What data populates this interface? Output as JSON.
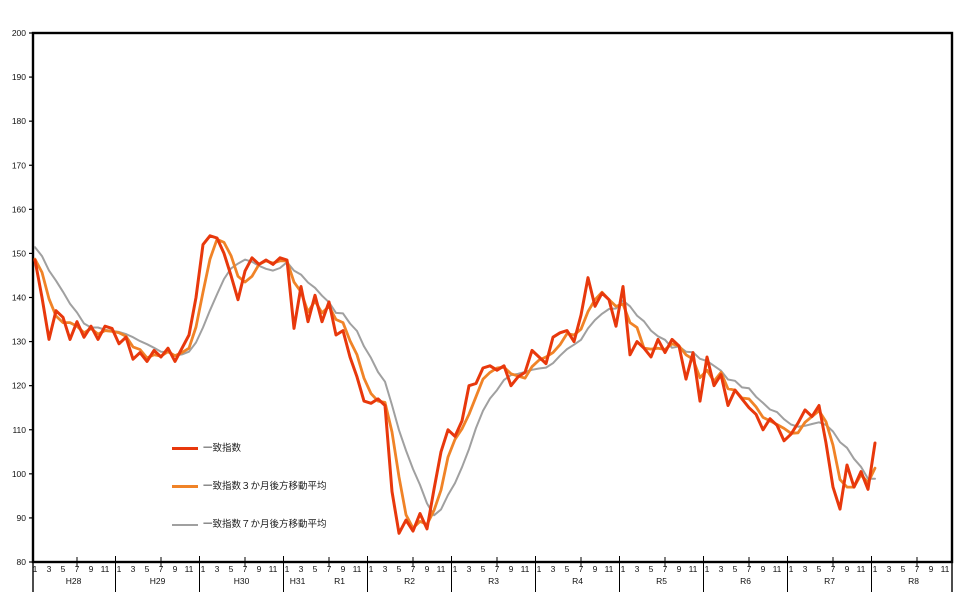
{
  "page": {
    "background": "#ffffff",
    "plot_border_color": "#000000"
  },
  "chart_data": {
    "type": "line",
    "title": "",
    "grid": "off",
    "legend_position": "inside-lower-left",
    "y_axis": {
      "min": 80,
      "max": 200,
      "step": 10,
      "tick_labels": [
        "80",
        "90",
        "100",
        "110",
        "120",
        "130",
        "140",
        "150",
        "160",
        "170",
        "180",
        "190",
        "200"
      ]
    },
    "x_axis": {
      "unit": "month",
      "month_tick_labels": [
        "1",
        "3",
        "5",
        "7",
        "9",
        "11"
      ],
      "year_groups": [
        {
          "label": "H28",
          "months": 12,
          "new_calendar_year": true
        },
        {
          "label": "H29",
          "months": 12,
          "new_calendar_year": true
        },
        {
          "label": "H30",
          "months": 12,
          "new_calendar_year": true
        },
        {
          "label": "H31",
          "months": 4,
          "new_calendar_year": true
        },
        {
          "label": "R1",
          "months": 8,
          "new_calendar_year": false
        },
        {
          "label": "R2",
          "months": 12,
          "new_calendar_year": true
        },
        {
          "label": "R3",
          "months": 12,
          "new_calendar_year": true
        },
        {
          "label": "R4",
          "months": 12,
          "new_calendar_year": true
        },
        {
          "label": "R5",
          "months": 12,
          "new_calendar_year": true
        },
        {
          "label": "R6",
          "months": 12,
          "new_calendar_year": true
        },
        {
          "label": "R7",
          "months": 12,
          "new_calendar_year": true
        },
        {
          "label": "R8",
          "months": 12,
          "new_calendar_year": true
        }
      ]
    },
    "series": [
      {
        "key": "coincident-index",
        "name": "一致指数",
        "color": "#e8380c",
        "line_width": 3,
        "start": "H28-01",
        "values": [
          148.5,
          140,
          130.5,
          137,
          135.5,
          130.5,
          134.5,
          131,
          133.5,
          130.5,
          133.5,
          133,
          129.5,
          131,
          126,
          127.5,
          125.5,
          128,
          126.5,
          128.5,
          125.5,
          128.5,
          131.5,
          140,
          152,
          154,
          153.5,
          150,
          145,
          139.5,
          146,
          149,
          147.5,
          148.5,
          147.5,
          149,
          148.5,
          133,
          142.5,
          134.5,
          140.5,
          134.5,
          139,
          131.5,
          132.5,
          126.5,
          122,
          116.5,
          116,
          117,
          115.5,
          96,
          86.5,
          89.5,
          87,
          91,
          87.5,
          96.5,
          105,
          110,
          108.5,
          112,
          120,
          120.5,
          124,
          124.5,
          123.5,
          124.5,
          120,
          122,
          123,
          128,
          126.5,
          125,
          131,
          132,
          132.5,
          130,
          136,
          144.5,
          138,
          141,
          139.5,
          133.5,
          142.5,
          127,
          130,
          128.5,
          126.5,
          130.5,
          127.5,
          130.5,
          129,
          121.5,
          127.5,
          116.5,
          126.5,
          120,
          122.5,
          115.5,
          119,
          117,
          115,
          113.5,
          110,
          112.5,
          111,
          107.5,
          109,
          111.5,
          114.5,
          113,
          115.5,
          107,
          97,
          92,
          102,
          97,
          100.5,
          96.5,
          107
        ]
      },
      {
        "key": "coincident-index-3month-backward-moving-average",
        "name": "一致指数３か月後方移動平均",
        "color": "#f08327",
        "line_width": 2.8,
        "start": "H28-01",
        "values": [
          148.7,
          145.7,
          139.7,
          135.8,
          134.3,
          134.3,
          133.5,
          132,
          133,
          131.7,
          132.5,
          132.3,
          132,
          131.2,
          128.8,
          128.2,
          126.3,
          127,
          126.7,
          127.7,
          126.8,
          127.5,
          128.5,
          133.3,
          141.2,
          148.7,
          153.2,
          152.5,
          149.5,
          144.8,
          143.5,
          144.8,
          147.5,
          148.3,
          147.8,
          148.3,
          148.3,
          143.5,
          141.3,
          136.7,
          139.2,
          136.5,
          138,
          135,
          134.3,
          130.2,
          127,
          121.7,
          118.2,
          116.5,
          116.2,
          109.5,
          99.3,
          90.7,
          87.7,
          89.2,
          88.5,
          91.7,
          96.3,
          103.8,
          107.8,
          110.2,
          113.5,
          117.5,
          121.5,
          123,
          124,
          124.2,
          122.7,
          122.2,
          121.7,
          124.3,
          125.8,
          126.5,
          127.5,
          129.3,
          131.8,
          131.5,
          132.8,
          136.8,
          139.5,
          141.2,
          139.5,
          138,
          138.5,
          134.3,
          133.2,
          128.5,
          128.3,
          128.5,
          128.2,
          129.5,
          129,
          127,
          126,
          121.8,
          123.5,
          121,
          123,
          119.3,
          119,
          117.2,
          117,
          115.2,
          112.8,
          112,
          111.2,
          110.3,
          109.2,
          109.3,
          111.7,
          113,
          114.3,
          111.8,
          106.5,
          98.7,
          97,
          97,
          99.8,
          98,
          101.3
        ]
      },
      {
        "key": "coincident-index-7month-backward-moving-average",
        "name": "一致指数７か月後方移動平均",
        "color": "#a0a0a0",
        "line_width": 2,
        "start": "H28-01",
        "values": [
          151.4,
          149.4,
          146.1,
          143.8,
          141.3,
          138.6,
          136.6,
          134.1,
          133.2,
          133.2,
          132.7,
          132.4,
          132.2,
          131.7,
          131,
          130.1,
          129.4,
          128.6,
          127.7,
          127.6,
          126.8,
          127.1,
          127.7,
          129.8,
          133.2,
          137.1,
          140.7,
          144.2,
          146.6,
          147.7,
          148.6,
          148.1,
          147.2,
          146.5,
          146.1,
          146.7,
          148,
          146.1,
          145.2,
          143.4,
          142.2,
          140.4,
          138.9,
          136.5,
          136.4,
          134.1,
          132.4,
          128.9,
          126.3,
          123.1,
          120.9,
          115.6,
          109.9,
          105.3,
          101.1,
          97.5,
          93.3,
          90.6,
          91.9,
          95.2,
          97.9,
          101.5,
          105.6,
          110.4,
          114.3,
          117.1,
          119,
          121.3,
          122.4,
          122.7,
          123.1,
          123.6,
          123.9,
          124.1,
          125.1,
          126.8,
          128.3,
          129.3,
          130.4,
          133,
          134.9,
          136.3,
          137.4,
          137.5,
          139.3,
          138,
          135.9,
          134.6,
          132.5,
          131.2,
          130.4,
          128.6,
          128.9,
          127.7,
          127.6,
          126.1,
          125.6,
          124.5,
          123.4,
          121.4,
          121.1,
          119.6,
          119.4,
          117.5,
          116.1,
          114.6,
          114,
          112.4,
          111.2,
          110.7,
          110.9,
          111.3,
          111.7,
          111.1,
          109.6,
          107.2,
          105.9,
          103.4,
          101.6,
          98.9,
          98.9
        ]
      }
    ]
  }
}
